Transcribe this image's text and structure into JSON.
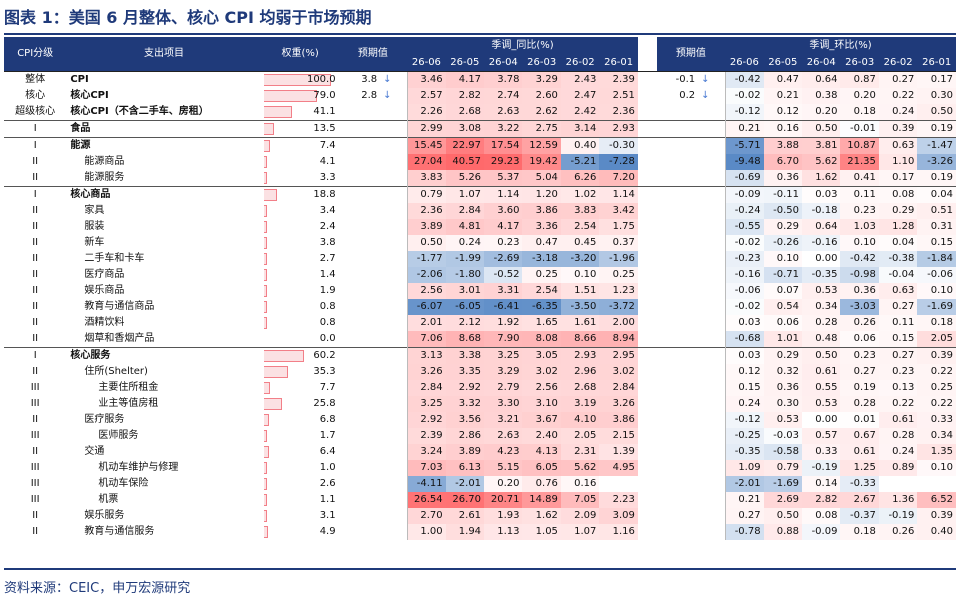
{
  "title": "图表 1：美国 6 月整体、核心 CPI 均弱于市场预期",
  "source": "资料来源：CEIC，申万宏源研究",
  "headers": {
    "level": "CPI分级",
    "item": "支出项目",
    "weight": "权重(%)",
    "forecast": "预期值",
    "yoy_group": "季调_同比(%)",
    "mom_group": "季调_环比(%)",
    "months": [
      "26-06",
      "26-05",
      "26-04",
      "26-03",
      "26-02",
      "26-01"
    ]
  },
  "colors": {
    "header_bg": "#1f3a7a",
    "positive_strong": "#f8696b",
    "negative_strong": "#5a8ac6",
    "weight_bar": "#fbe1e3",
    "arrow": "#4b7bd2"
  },
  "rows": [
    {
      "level": "整体",
      "name": "CPI",
      "bold": true,
      "weight": "100.0",
      "wf": 1.0,
      "fyoy": "3.8",
      "fyoy_icon": "down-arrow-icon",
      "fyoy_arrow": "↓",
      "yoy": [
        "3.46",
        "4.17",
        "3.78",
        "3.29",
        "2.43",
        "2.39"
      ],
      "fmom": "-0.1",
      "fmom_icon": "down-arrow-icon",
      "fmom_arrow": "↓",
      "mom": [
        "-0.42",
        "0.47",
        "0.64",
        "0.87",
        "0.27",
        "0.17"
      ],
      "indent": 0,
      "group": "first"
    },
    {
      "level": "核心",
      "name": "核心CPI",
      "bold": true,
      "weight": "79.0",
      "wf": 0.79,
      "fyoy": "2.8",
      "fyoy_icon": "down-arrow-icon",
      "fyoy_arrow": "↓",
      "yoy": [
        "2.57",
        "2.82",
        "2.74",
        "2.60",
        "2.47",
        "2.51"
      ],
      "fmom": "0.2",
      "fmom_icon": "down-arrow-icon",
      "fmom_arrow": "↓",
      "mom": [
        "-0.02",
        "0.21",
        "0.38",
        "0.20",
        "0.22",
        "0.30"
      ],
      "indent": 0
    },
    {
      "level": "超级核心",
      "name": "核心CPI（不含二手车、房租）",
      "bold": true,
      "weight": "41.1",
      "wf": 0.411,
      "fyoy": "",
      "fyoy_arrow": "",
      "yoy": [
        "2.26",
        "2.68",
        "2.63",
        "2.62",
        "2.42",
        "2.36"
      ],
      "fmom": "",
      "fmom_arrow": "",
      "mom": [
        "-0.12",
        "0.12",
        "0.20",
        "0.18",
        "0.24",
        "0.50"
      ],
      "indent": 0
    },
    {
      "level": "I",
      "name": "食品",
      "bold": true,
      "weight": "13.5",
      "wf": 0.135,
      "fyoy": "",
      "fyoy_arrow": "",
      "yoy": [
        "2.99",
        "3.08",
        "3.22",
        "2.75",
        "3.14",
        "2.93"
      ],
      "fmom": "",
      "fmom_arrow": "",
      "mom": [
        "0.21",
        "0.16",
        "0.50",
        "-0.01",
        "0.39",
        "0.19"
      ],
      "indent": 0,
      "group": "group"
    },
    {
      "level": "I",
      "name": "能源",
      "bold": true,
      "weight": "7.4",
      "wf": 0.074,
      "fyoy": "",
      "fyoy_arrow": "",
      "yoy": [
        "15.45",
        "22.97",
        "17.54",
        "12.59",
        "0.40",
        "-0.30"
      ],
      "fmom": "",
      "fmom_arrow": "",
      "mom": [
        "-5.71",
        "3.88",
        "3.81",
        "10.87",
        "0.63",
        "-1.47"
      ],
      "indent": 0,
      "group": "group"
    },
    {
      "level": "II",
      "name": "能源商品",
      "bold": false,
      "weight": "4.1",
      "wf": 0.041,
      "fyoy": "",
      "fyoy_arrow": "",
      "yoy": [
        "27.04",
        "40.57",
        "29.23",
        "19.42",
        "-5.21",
        "-7.28"
      ],
      "fmom": "",
      "fmom_arrow": "",
      "mom": [
        "-9.48",
        "6.70",
        "5.62",
        "21.35",
        "1.10",
        "-3.26"
      ],
      "indent": 1
    },
    {
      "level": "II",
      "name": "能源服务",
      "bold": false,
      "weight": "3.3",
      "wf": 0.033,
      "fyoy": "",
      "fyoy_arrow": "",
      "yoy": [
        "3.83",
        "5.26",
        "5.37",
        "5.04",
        "6.26",
        "7.20"
      ],
      "fmom": "",
      "fmom_arrow": "",
      "mom": [
        "-0.69",
        "0.36",
        "1.62",
        "0.41",
        "0.17",
        "0.19"
      ],
      "indent": 1
    },
    {
      "level": "I",
      "name": "核心商品",
      "bold": true,
      "weight": "18.8",
      "wf": 0.188,
      "fyoy": "",
      "fyoy_arrow": "",
      "yoy": [
        "0.79",
        "1.07",
        "1.14",
        "1.20",
        "1.02",
        "1.14"
      ],
      "fmom": "",
      "fmom_arrow": "",
      "mom": [
        "-0.09",
        "-0.11",
        "0.03",
        "0.11",
        "0.08",
        "0.04"
      ],
      "indent": 0,
      "group": "group"
    },
    {
      "level": "II",
      "name": "家具",
      "bold": false,
      "weight": "3.4",
      "wf": 0.034,
      "fyoy": "",
      "fyoy_arrow": "",
      "yoy": [
        "2.36",
        "2.84",
        "3.60",
        "3.86",
        "3.83",
        "3.42"
      ],
      "fmom": "",
      "fmom_arrow": "",
      "mom": [
        "-0.24",
        "-0.50",
        "-0.18",
        "0.23",
        "0.29",
        "0.51"
      ],
      "indent": 1
    },
    {
      "level": "II",
      "name": "服装",
      "bold": false,
      "weight": "2.4",
      "wf": 0.024,
      "fyoy": "",
      "fyoy_arrow": "",
      "yoy": [
        "3.89",
        "4.81",
        "4.17",
        "3.36",
        "2.54",
        "1.75"
      ],
      "fmom": "",
      "fmom_arrow": "",
      "mom": [
        "-0.55",
        "0.29",
        "0.64",
        "1.03",
        "1.28",
        "0.31"
      ],
      "indent": 1
    },
    {
      "level": "II",
      "name": "新车",
      "bold": false,
      "weight": "3.8",
      "wf": 0.038,
      "fyoy": "",
      "fyoy_arrow": "",
      "yoy": [
        "0.50",
        "0.24",
        "0.23",
        "0.47",
        "0.45",
        "0.37"
      ],
      "fmom": "",
      "fmom_arrow": "",
      "mom": [
        "-0.02",
        "-0.26",
        "-0.16",
        "0.10",
        "0.04",
        "0.15"
      ],
      "indent": 1
    },
    {
      "level": "II",
      "name": "二手车和卡车",
      "bold": false,
      "weight": "2.7",
      "wf": 0.027,
      "fyoy": "",
      "fyoy_arrow": "",
      "yoy": [
        "-1.77",
        "-1.99",
        "-2.69",
        "-3.18",
        "-3.20",
        "-1.96"
      ],
      "fmom": "",
      "fmom_arrow": "",
      "mom": [
        "-0.23",
        "0.10",
        "0.00",
        "-0.42",
        "-0.38",
        "-1.84"
      ],
      "indent": 1
    },
    {
      "level": "II",
      "name": "医疗商品",
      "bold": false,
      "weight": "1.4",
      "wf": 0.014,
      "fyoy": "",
      "fyoy_arrow": "",
      "yoy": [
        "-2.06",
        "-1.80",
        "-0.52",
        "0.25",
        "0.10",
        "0.25"
      ],
      "fmom": "",
      "fmom_arrow": "",
      "mom": [
        "-0.16",
        "-0.71",
        "-0.35",
        "-0.98",
        "-0.04",
        "-0.06"
      ],
      "indent": 1
    },
    {
      "level": "II",
      "name": "娱乐商品",
      "bold": false,
      "weight": "1.9",
      "wf": 0.019,
      "fyoy": "",
      "fyoy_arrow": "",
      "yoy": [
        "2.56",
        "3.01",
        "3.31",
        "2.54",
        "1.51",
        "1.23"
      ],
      "fmom": "",
      "fmom_arrow": "",
      "mom": [
        "-0.06",
        "0.07",
        "0.53",
        "0.36",
        "0.63",
        "0.10"
      ],
      "indent": 1
    },
    {
      "level": "II",
      "name": "教育与通信商品",
      "bold": false,
      "weight": "0.8",
      "wf": 0.008,
      "fyoy": "",
      "fyoy_arrow": "",
      "yoy": [
        "-6.07",
        "-6.05",
        "-6.41",
        "-6.35",
        "-3.50",
        "-3.72"
      ],
      "fmom": "",
      "fmom_arrow": "",
      "mom": [
        "-0.02",
        "0.54",
        "0.34",
        "-3.03",
        "0.27",
        "-1.69"
      ],
      "indent": 1
    },
    {
      "level": "II",
      "name": "酒精饮料",
      "bold": false,
      "weight": "0.8",
      "wf": 0.008,
      "fyoy": "",
      "fyoy_arrow": "",
      "yoy": [
        "2.01",
        "2.12",
        "1.92",
        "1.65",
        "1.61",
        "2.00"
      ],
      "fmom": "",
      "fmom_arrow": "",
      "mom": [
        "0.03",
        "0.06",
        "0.28",
        "0.26",
        "0.11",
        "0.18"
      ],
      "indent": 1
    },
    {
      "level": "II",
      "name": "烟草和香烟产品",
      "bold": false,
      "weight": "0.0",
      "wf": 0.0,
      "fyoy": "",
      "fyoy_arrow": "",
      "yoy": [
        "7.06",
        "8.68",
        "7.90",
        "8.08",
        "8.66",
        "8.94"
      ],
      "fmom": "",
      "fmom_arrow": "",
      "mom": [
        "-0.68",
        "1.01",
        "0.48",
        "0.06",
        "0.15",
        "2.05"
      ],
      "indent": 1
    },
    {
      "level": "I",
      "name": "核心服务",
      "bold": true,
      "weight": "60.2",
      "wf": 0.602,
      "fyoy": "",
      "fyoy_arrow": "",
      "yoy": [
        "3.13",
        "3.38",
        "3.25",
        "3.05",
        "2.93",
        "2.95"
      ],
      "fmom": "",
      "fmom_arrow": "",
      "mom": [
        "0.03",
        "0.29",
        "0.50",
        "0.23",
        "0.27",
        "0.39"
      ],
      "indent": 0,
      "group": "group"
    },
    {
      "level": "II",
      "name": "住所(Shelter)",
      "bold": false,
      "weight": "35.3",
      "wf": 0.353,
      "fyoy": "",
      "fyoy_arrow": "",
      "yoy": [
        "3.26",
        "3.35",
        "3.29",
        "3.02",
        "2.96",
        "3.02"
      ],
      "fmom": "",
      "fmom_arrow": "",
      "mom": [
        "0.12",
        "0.32",
        "0.61",
        "0.27",
        "0.23",
        "0.22"
      ],
      "indent": 1
    },
    {
      "level": "III",
      "name": "主要住所租金",
      "bold": false,
      "weight": "7.7",
      "wf": 0.077,
      "fyoy": "",
      "fyoy_arrow": "",
      "yoy": [
        "2.84",
        "2.92",
        "2.79",
        "2.56",
        "2.68",
        "2.84"
      ],
      "fmom": "",
      "fmom_arrow": "",
      "mom": [
        "0.15",
        "0.36",
        "0.55",
        "0.19",
        "0.13",
        "0.25"
      ],
      "indent": 2
    },
    {
      "level": "III",
      "name": "业主等值房租",
      "bold": false,
      "weight": "25.8",
      "wf": 0.258,
      "fyoy": "",
      "fyoy_arrow": "",
      "yoy": [
        "3.25",
        "3.32",
        "3.30",
        "3.10",
        "3.19",
        "3.26"
      ],
      "fmom": "",
      "fmom_arrow": "",
      "mom": [
        "0.24",
        "0.30",
        "0.53",
        "0.28",
        "0.22",
        "0.22"
      ],
      "indent": 2
    },
    {
      "level": "II",
      "name": "医疗服务",
      "bold": false,
      "weight": "6.8",
      "wf": 0.068,
      "fyoy": "",
      "fyoy_arrow": "",
      "yoy": [
        "2.92",
        "3.56",
        "3.21",
        "3.67",
        "4.10",
        "3.86"
      ],
      "fmom": "",
      "fmom_arrow": "",
      "mom": [
        "-0.12",
        "0.53",
        "0.00",
        "0.01",
        "0.61",
        "0.33"
      ],
      "indent": 1
    },
    {
      "level": "III",
      "name": "医师服务",
      "bold": false,
      "weight": "1.7",
      "wf": 0.017,
      "fyoy": "",
      "fyoy_arrow": "",
      "yoy": [
        "2.39",
        "2.86",
        "2.63",
        "2.40",
        "2.05",
        "2.15"
      ],
      "fmom": "",
      "fmom_arrow": "",
      "mom": [
        "-0.25",
        "-0.03",
        "0.57",
        "0.67",
        "0.28",
        "0.34"
      ],
      "indent": 2
    },
    {
      "level": "II",
      "name": "交通",
      "bold": false,
      "weight": "6.4",
      "wf": 0.064,
      "fyoy": "",
      "fyoy_arrow": "",
      "yoy": [
        "3.24",
        "3.89",
        "4.23",
        "4.13",
        "2.31",
        "1.39"
      ],
      "fmom": "",
      "fmom_arrow": "",
      "mom": [
        "-0.35",
        "-0.58",
        "0.33",
        "0.61",
        "0.24",
        "1.35"
      ],
      "indent": 1
    },
    {
      "level": "III",
      "name": "机动车维护与修理",
      "bold": false,
      "weight": "1.0",
      "wf": 0.01,
      "fyoy": "",
      "fyoy_arrow": "",
      "yoy": [
        "7.03",
        "6.13",
        "5.15",
        "6.05",
        "5.62",
        "4.95"
      ],
      "fmom": "",
      "fmom_arrow": "",
      "mom": [
        "1.09",
        "0.79",
        "-0.19",
        "1.25",
        "0.89",
        "0.10"
      ],
      "indent": 2
    },
    {
      "level": "III",
      "name": "机动车保险",
      "bold": false,
      "weight": "2.6",
      "wf": 0.026,
      "fyoy": "",
      "fyoy_arrow": "",
      "yoy": [
        "-4.11",
        "-2.01",
        "0.20",
        "0.76",
        "0.16",
        ""
      ],
      "fmom": "",
      "fmom_arrow": "",
      "mom": [
        "-2.01",
        "-1.69",
        "0.14",
        "-0.33",
        "",
        ""
      ],
      "indent": 2
    },
    {
      "level": "III",
      "name": "机票",
      "bold": false,
      "weight": "1.1",
      "wf": 0.011,
      "fyoy": "",
      "fyoy_arrow": "",
      "yoy": [
        "26.54",
        "26.70",
        "20.71",
        "14.89",
        "7.05",
        "2.23"
      ],
      "fmom": "",
      "fmom_arrow": "",
      "mom": [
        "0.21",
        "2.69",
        "2.82",
        "2.67",
        "1.36",
        "6.52"
      ],
      "indent": 2
    },
    {
      "level": "II",
      "name": "娱乐服务",
      "bold": false,
      "weight": "3.1",
      "wf": 0.031,
      "fyoy": "",
      "fyoy_arrow": "",
      "yoy": [
        "2.70",
        "2.61",
        "1.93",
        "1.62",
        "2.09",
        "3.09"
      ],
      "fmom": "",
      "fmom_arrow": "",
      "mom": [
        "0.27",
        "0.50",
        "0.08",
        "-0.37",
        "-0.19",
        "0.39"
      ],
      "indent": 1
    },
    {
      "level": "II",
      "name": "教育与通信服务",
      "bold": false,
      "weight": "4.9",
      "wf": 0.049,
      "fyoy": "",
      "fyoy_arrow": "",
      "yoy": [
        "1.00",
        "1.94",
        "1.13",
        "1.05",
        "1.07",
        "1.16"
      ],
      "fmom": "",
      "fmom_arrow": "",
      "mom": [
        "-0.78",
        "0.88",
        "-0.09",
        "0.18",
        "0.26",
        "0.40"
      ],
      "indent": 1
    }
  ]
}
